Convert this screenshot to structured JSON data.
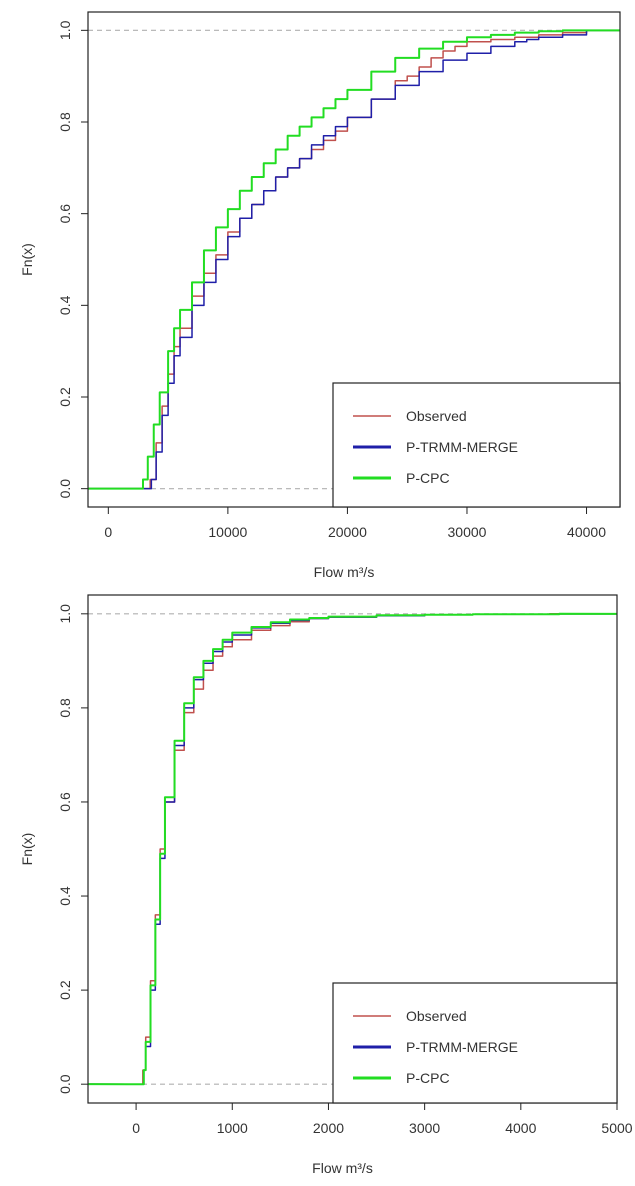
{
  "chart_data": [
    {
      "type": "line",
      "title": "",
      "xlabel": "Flow m³/s",
      "ylabel": "Fn(x)",
      "xlim": [
        -1700,
        42800
      ],
      "ylim": [
        -0.04,
        1.04
      ],
      "xticks": [
        0,
        10000,
        20000,
        30000,
        40000
      ],
      "yticks": [
        0.0,
        0.2,
        0.4,
        0.6,
        0.8,
        1.0
      ],
      "reference_lines": [
        0,
        1
      ],
      "legend_position": "bottom-right",
      "series": [
        {
          "name": "Observed",
          "color": "#c0504d",
          "x": [
            3300,
            3500,
            4000,
            4500,
            5000,
            5500,
            6000,
            7000,
            8000,
            9000,
            10000,
            11000,
            12000,
            13000,
            14000,
            15000,
            16000,
            17000,
            18000,
            19000,
            20000,
            22000,
            24000,
            25000,
            26000,
            27000,
            28000,
            29000,
            30000,
            32000,
            34000,
            36000,
            38000,
            40000,
            42800
          ],
          "y": [
            0.0,
            0.02,
            0.1,
            0.18,
            0.25,
            0.31,
            0.35,
            0.42,
            0.47,
            0.51,
            0.56,
            0.59,
            0.62,
            0.65,
            0.68,
            0.7,
            0.72,
            0.74,
            0.76,
            0.78,
            0.81,
            0.85,
            0.89,
            0.9,
            0.92,
            0.94,
            0.955,
            0.965,
            0.975,
            0.98,
            0.985,
            0.99,
            0.995,
            1.0,
            1.0
          ]
        },
        {
          "name": "P-TRMM-MERGE",
          "color": "#1f1fa8",
          "x": [
            3400,
            3600,
            4000,
            4500,
            5000,
            5500,
            6000,
            7000,
            8000,
            9000,
            10000,
            11000,
            12000,
            13000,
            14000,
            15000,
            16000,
            17000,
            18000,
            19000,
            20000,
            22000,
            24000,
            26000,
            28000,
            30000,
            32000,
            34000,
            35000,
            36000,
            38000,
            40000,
            42800
          ],
          "y": [
            0.0,
            0.02,
            0.08,
            0.16,
            0.23,
            0.29,
            0.33,
            0.4,
            0.45,
            0.5,
            0.55,
            0.59,
            0.62,
            0.65,
            0.68,
            0.7,
            0.72,
            0.75,
            0.77,
            0.79,
            0.81,
            0.85,
            0.88,
            0.91,
            0.935,
            0.95,
            0.965,
            0.975,
            0.98,
            0.985,
            0.99,
            1.0,
            1.0
          ]
        },
        {
          "name": "P-CPC",
          "color": "#22dd22",
          "x": [
            2600,
            2900,
            3300,
            3800,
            4300,
            5000,
            5500,
            6000,
            7000,
            8000,
            9000,
            10000,
            11000,
            12000,
            13000,
            14000,
            15000,
            16000,
            17000,
            18000,
            19000,
            20000,
            22000,
            24000,
            26000,
            28000,
            30000,
            32000,
            34000,
            36000,
            38000,
            40000,
            42800
          ],
          "y": [
            0.0,
            0.02,
            0.07,
            0.14,
            0.21,
            0.3,
            0.35,
            0.39,
            0.45,
            0.52,
            0.57,
            0.61,
            0.65,
            0.68,
            0.71,
            0.74,
            0.77,
            0.79,
            0.81,
            0.83,
            0.85,
            0.87,
            0.91,
            0.94,
            0.96,
            0.975,
            0.985,
            0.99,
            0.995,
            0.998,
            1.0,
            1.0,
            1.0
          ]
        }
      ]
    },
    {
      "type": "line",
      "title": "",
      "xlabel": "Flow m³/s",
      "ylabel": "Fn(x)",
      "xlim": [
        -500,
        5000
      ],
      "ylim": [
        -0.04,
        1.04
      ],
      "xticks": [
        0,
        1000,
        2000,
        3000,
        4000,
        5000
      ],
      "yticks": [
        0.0,
        0.2,
        0.4,
        0.6,
        0.8,
        1.0
      ],
      "reference_lines": [
        0,
        1
      ],
      "legend_position": "bottom-right",
      "series": [
        {
          "name": "Observed",
          "color": "#c0504d",
          "x": [
            50,
            70,
            100,
            150,
            200,
            250,
            300,
            400,
            500,
            600,
            700,
            800,
            900,
            1000,
            1200,
            1400,
            1600,
            1800,
            2000,
            2500,
            3000,
            3500,
            4300
          ],
          "y": [
            0.0,
            0.03,
            0.1,
            0.22,
            0.36,
            0.5,
            0.6,
            0.71,
            0.79,
            0.84,
            0.88,
            0.91,
            0.93,
            0.945,
            0.965,
            0.975,
            0.983,
            0.99,
            0.993,
            0.996,
            0.998,
            0.999,
            1.0
          ]
        },
        {
          "name": "P-TRMM-MERGE",
          "color": "#1f1fa8",
          "x": [
            50,
            80,
            100,
            150,
            200,
            250,
            300,
            400,
            500,
            600,
            700,
            800,
            900,
            1000,
            1200,
            1400,
            1600,
            1800,
            2000,
            2500,
            3000,
            3500,
            4400
          ],
          "y": [
            0.0,
            0.03,
            0.08,
            0.2,
            0.34,
            0.48,
            0.6,
            0.72,
            0.8,
            0.86,
            0.895,
            0.92,
            0.94,
            0.955,
            0.97,
            0.98,
            0.986,
            0.99,
            0.993,
            0.996,
            0.998,
            0.999,
            1.0
          ]
        },
        {
          "name": "P-CPC",
          "color": "#22dd22",
          "x": [
            50,
            80,
            100,
            150,
            200,
            250,
            300,
            400,
            500,
            600,
            700,
            800,
            900,
            1000,
            1200,
            1400,
            1600,
            1800,
            2000,
            2500,
            3000,
            3500,
            4400
          ],
          "y": [
            0.0,
            0.03,
            0.09,
            0.21,
            0.35,
            0.49,
            0.61,
            0.73,
            0.81,
            0.865,
            0.9,
            0.925,
            0.945,
            0.96,
            0.972,
            0.982,
            0.988,
            0.991,
            0.994,
            0.997,
            0.998,
            0.999,
            1.0
          ]
        }
      ]
    }
  ]
}
